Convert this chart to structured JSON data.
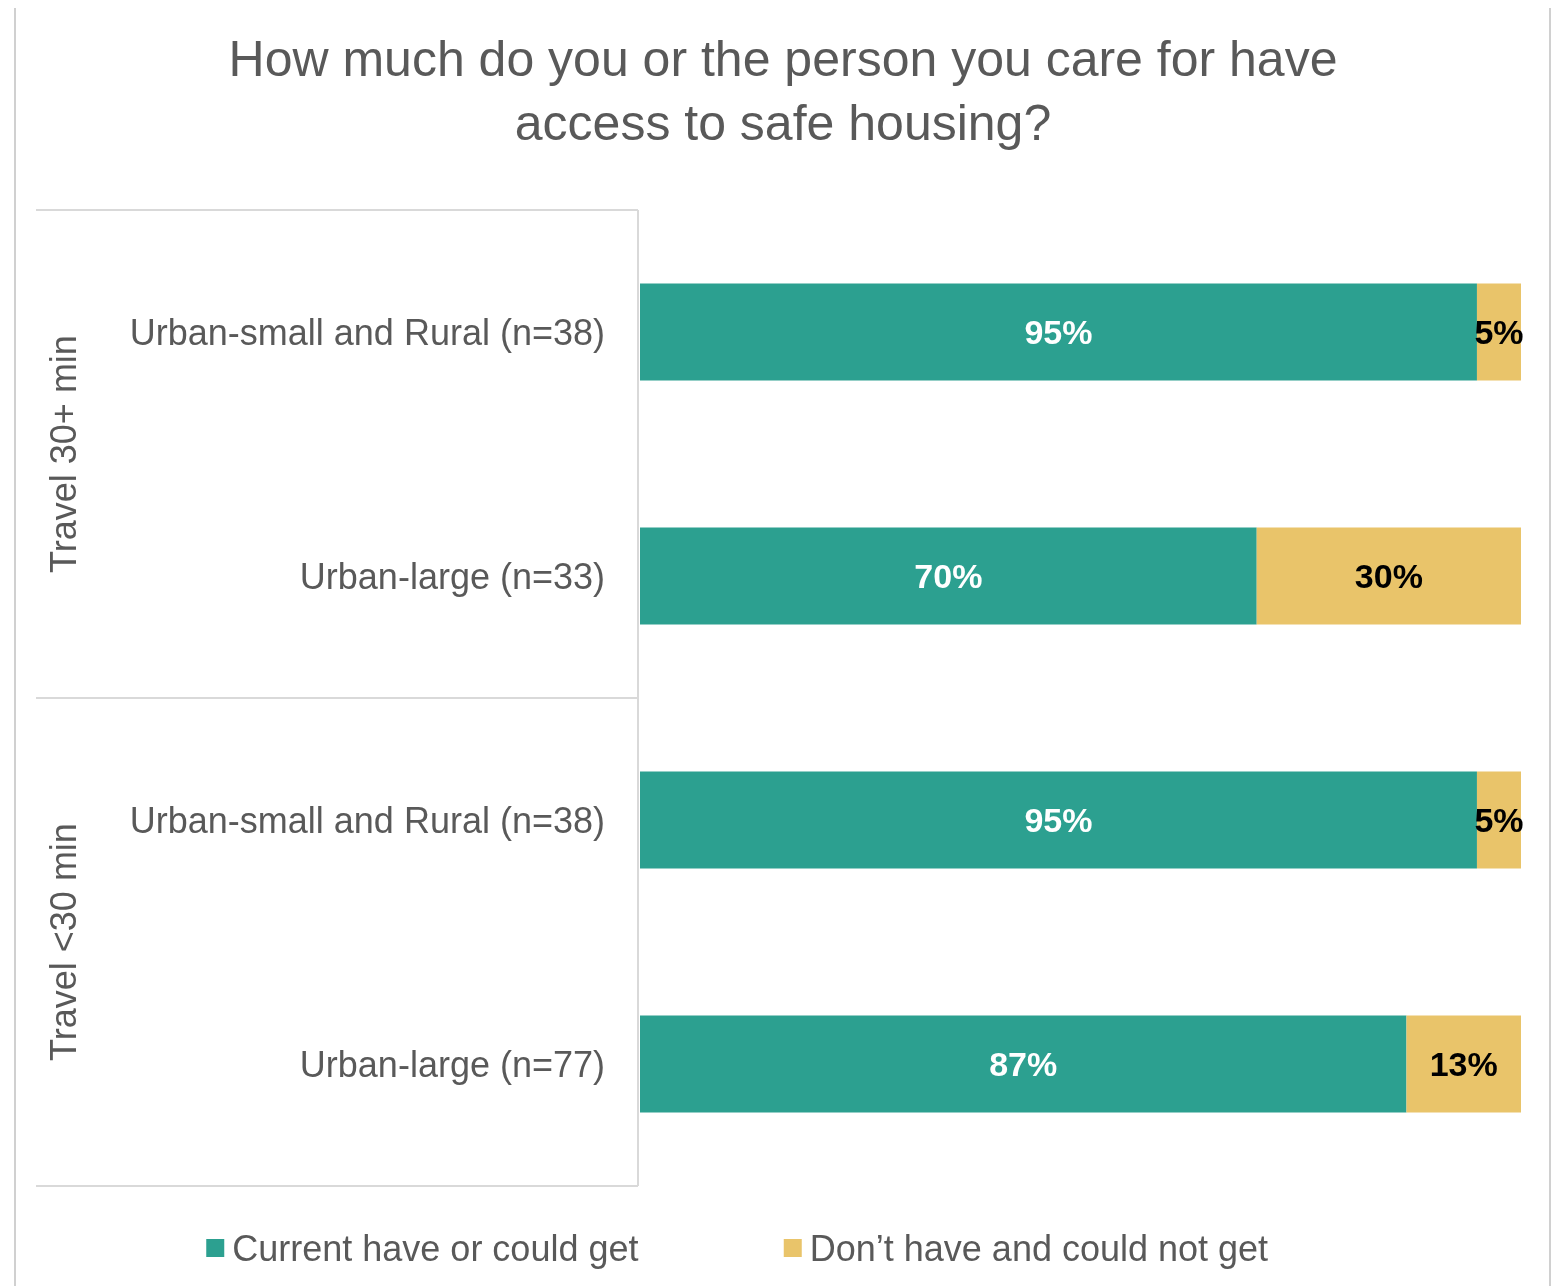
{
  "chart_data": {
    "type": "bar",
    "orientation": "horizontal",
    "stacked": true,
    "title": "How much do you or the person you care for have access to safe housing?",
    "categories": [
      "Urban-small and Rural (n=38)",
      "Urban-large (n=33)",
      "Urban-small and Rural (n=38)",
      "Urban-large (n=77)"
    ],
    "annotations": [
      "Travel 30+ min",
      "Travel <30 min"
    ],
    "xlim": [
      0,
      100
    ],
    "legend": "bottom",
    "series": [
      {
        "name": "Current have or could get",
        "color": "#2ca090",
        "values": [
          95,
          70,
          95,
          87
        ],
        "value_labels": [
          "95%",
          "70%",
          "95%",
          "87%"
        ]
      },
      {
        "name": "Don’t have and could not get",
        "color": "#e9c46a",
        "values": [
          5,
          30,
          5,
          13
        ],
        "value_labels": [
          "5%",
          "30%",
          "5%",
          "13%"
        ]
      }
    ]
  }
}
